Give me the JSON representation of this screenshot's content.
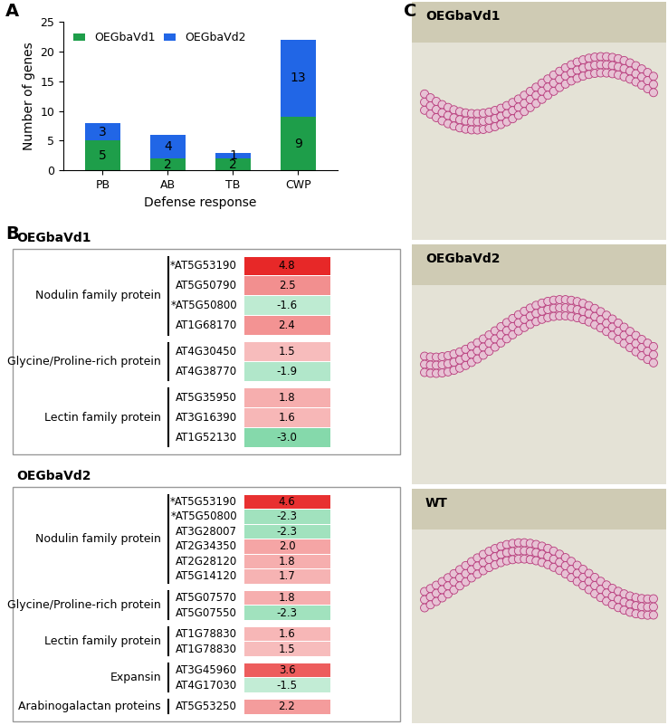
{
  "panel_labels": [
    "A",
    "B",
    "C"
  ],
  "chart_data": {
    "type": "bar",
    "stacked": true,
    "data_labels": true,
    "categories": [
      "PB",
      "AB",
      "TB",
      "CWP"
    ],
    "x_label": "Defense response",
    "y_label": "Number of genes",
    "series": [
      {
        "name": "OEGbaVd1",
        "color": "#1e9e4a",
        "values": [
          5,
          2,
          2,
          9
        ]
      },
      {
        "name": "OEGbaVd2",
        "color": "#2166e6",
        "values": [
          3,
          4,
          1,
          13
        ]
      }
    ],
    "ylim": [
      0,
      25
    ],
    "yticks": [
      0,
      5,
      10,
      15,
      20,
      25
    ],
    "legend": "upper left"
  },
  "panel_B": [
    {
      "title": "OEGbaVd1",
      "groups": [
        {
          "label": "Nodulin family protein",
          "genes": [
            {
              "gene": "*AT5G53190",
              "value": 4.8
            },
            {
              "gene": "AT5G50790",
              "value": 2.5
            },
            {
              "gene": "*AT5G50800",
              "value": -1.6
            },
            {
              "gene": "AT1G68170",
              "value": 2.4
            }
          ]
        },
        {
          "label": "Glycine/Proline-rich protein",
          "genes": [
            {
              "gene": "AT4G30450",
              "value": 1.5
            },
            {
              "gene": "AT4G38770",
              "value": -1.9
            }
          ]
        },
        {
          "label": "Lectin family protein",
          "genes": [
            {
              "gene": "AT5G35950",
              "value": 1.8
            },
            {
              "gene": "AT3G16390",
              "value": 1.6
            },
            {
              "gene": "AT1G52130",
              "value": -3.0
            }
          ]
        }
      ]
    },
    {
      "title": "OEGbaVd2",
      "groups": [
        {
          "label": "Nodulin family protein",
          "genes": [
            {
              "gene": "*AT5G53190",
              "value": 4.6
            },
            {
              "gene": "*AT5G50800",
              "value": -2.3
            },
            {
              "gene": "AT3G28007",
              "value": -2.3
            },
            {
              "gene": "AT2G34350",
              "value": 2.0
            },
            {
              "gene": "AT2G28120",
              "value": 1.8
            },
            {
              "gene": "AT5G14120",
              "value": 1.7
            }
          ]
        },
        {
          "label": "Glycine/Proline-rich protein",
          "genes": [
            {
              "gene": "AT5G07570",
              "value": 1.8
            },
            {
              "gene": "AT5G07550",
              "value": -2.3
            }
          ]
        },
        {
          "label": "Lectin family protein",
          "genes": [
            {
              "gene": "AT1G78830",
              "value": 1.6
            },
            {
              "gene": "AT1G78830",
              "value": 1.5
            }
          ]
        },
        {
          "label": "Expansin",
          "genes": [
            {
              "gene": "AT3G45960",
              "value": 3.6
            },
            {
              "gene": "AT4G17030",
              "value": -1.5
            }
          ]
        },
        {
          "label": "Arabinogalactan proteins",
          "genes": [
            {
              "gene": "AT5G53250",
              "value": 2.2
            }
          ]
        }
      ]
    }
  ],
  "panel_C": {
    "images": [
      {
        "label": "OEGbaVd1"
      },
      {
        "label": "OEGbaVd2"
      },
      {
        "label": "WT"
      }
    ]
  }
}
